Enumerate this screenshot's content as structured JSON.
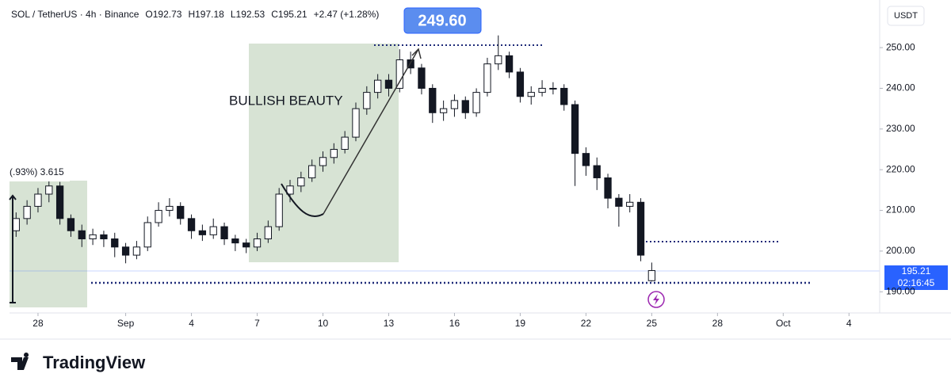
{
  "header": {
    "symbol": "SOL / TetherUS · 4h · Binance",
    "open": "O192.73",
    "high": "H197.18",
    "low": "L192.53",
    "close": "C195.21",
    "change": "+2.47 (+1.28%)",
    "currency": "USDT"
  },
  "annotations": {
    "pattern": "BULLISH BEAUTY",
    "callout": "249.60",
    "partial": "(.93%) 3.615"
  },
  "price_tag": {
    "price": "195.21",
    "countdown": "02:16:45"
  },
  "brand": "TradingView",
  "chart_data": {
    "type": "candlestick",
    "x": [
      -1,
      -0.5,
      0,
      0.5,
      1,
      1.5,
      2,
      2.5,
      3,
      3.5,
      4,
      4.5,
      5,
      5.5,
      6,
      6.5,
      7,
      7.5,
      8,
      8.5,
      9,
      9.5,
      10,
      10.5,
      11,
      11.5,
      12,
      12.5,
      13,
      13.5,
      14,
      14.5,
      15,
      15.5,
      16,
      16.5,
      17,
      17.5,
      18,
      18.5,
      19,
      19.5,
      20,
      20.5,
      21,
      21.5,
      22,
      22.5,
      23,
      23.5,
      24,
      24.5,
      25,
      25.5,
      26,
      26.5,
      27,
      27.5,
      28
    ],
    "open": [
      205,
      208,
      211,
      214,
      216,
      208,
      205,
      203,
      204,
      203,
      201,
      199,
      201,
      207,
      210,
      211,
      208,
      205,
      204,
      206,
      203,
      202,
      201,
      203,
      206,
      214,
      216,
      218,
      221,
      223,
      225,
      228,
      235,
      239,
      242,
      240,
      247,
      245,
      240,
      234,
      235,
      237,
      234,
      239,
      246,
      248,
      244,
      238,
      239,
      240,
      240,
      236,
      224,
      221,
      218,
      213,
      211,
      212,
      192.73
    ],
    "high": [
      209.5,
      212.5,
      215.5,
      218,
      217,
      209,
      206.5,
      205.5,
      205,
      204.5,
      202,
      202.5,
      208.5,
      212,
      213,
      212,
      209,
      206.5,
      208,
      207,
      204,
      203,
      204.5,
      207.5,
      215.5,
      217.5,
      219.5,
      222.5,
      224.5,
      226.5,
      229.5,
      236.5,
      240.5,
      243.5,
      243.5,
      249.6,
      249,
      246,
      241,
      237,
      238.5,
      238,
      240,
      247.5,
      253,
      249,
      245,
      240.5,
      242,
      241.5,
      241,
      237,
      225.5,
      223,
      219,
      214,
      214,
      213,
      197.18
    ],
    "low": [
      203.5,
      206.5,
      209.5,
      212,
      206.5,
      203.5,
      201,
      201.5,
      201,
      198.5,
      197,
      198,
      200,
      206,
      208.5,
      206.5,
      203,
      202.5,
      203,
      201.5,
      200,
      199.5,
      200,
      202,
      205,
      212,
      214.5,
      217,
      219.5,
      221.5,
      224,
      227,
      233.5,
      237.5,
      238,
      239,
      243.5,
      238.5,
      231.5,
      232,
      233,
      232.5,
      233,
      238,
      244.5,
      242.5,
      236.5,
      236,
      238,
      238.5,
      234.5,
      216,
      218.5,
      215,
      210.5,
      206,
      209.5,
      197.5,
      192.53
    ],
    "close": [
      208,
      211,
      214,
      216,
      208,
      205,
      203,
      204,
      203,
      201,
      199,
      201,
      207,
      210,
      211,
      208,
      205,
      204,
      206,
      203,
      202,
      201,
      203,
      206,
      214,
      216,
      218,
      221,
      223,
      225,
      228,
      235,
      239,
      242,
      240,
      247,
      245,
      240,
      234,
      235,
      237,
      234,
      239,
      246,
      248,
      244,
      238,
      239,
      240,
      240,
      236,
      224,
      221,
      218,
      213,
      211,
      212,
      199,
      195.21
    ],
    "up_color": "#ffffff",
    "down_color": "#131722",
    "xlim": [
      -1.3,
      38.4
    ],
    "ylim": [
      184.8,
      261.7
    ],
    "xticks": [
      {
        "value": 0,
        "label": "28"
      },
      {
        "value": 4,
        "label": "Sep"
      },
      {
        "value": 7,
        "label": "4"
      },
      {
        "value": 10,
        "label": "7"
      },
      {
        "value": 13,
        "label": "10"
      },
      {
        "value": 16,
        "label": "13"
      },
      {
        "value": 19,
        "label": "16"
      },
      {
        "value": 22,
        "label": "19"
      },
      {
        "value": 25,
        "label": "22"
      },
      {
        "value": 28,
        "label": "25"
      },
      {
        "value": 31,
        "label": "28"
      },
      {
        "value": 34,
        "label": "Oct"
      },
      {
        "value": 37,
        "label": "4"
      }
    ],
    "yticks": [
      {
        "value": 190,
        "label": "190.00"
      },
      {
        "value": 200,
        "label": "200.00"
      },
      {
        "value": 210,
        "label": "210.00"
      },
      {
        "value": 220,
        "label": "220.00"
      },
      {
        "value": 230,
        "label": "230.00"
      },
      {
        "value": 240,
        "label": "240.00"
      },
      {
        "value": 250,
        "label": "250.00"
      }
    ]
  }
}
